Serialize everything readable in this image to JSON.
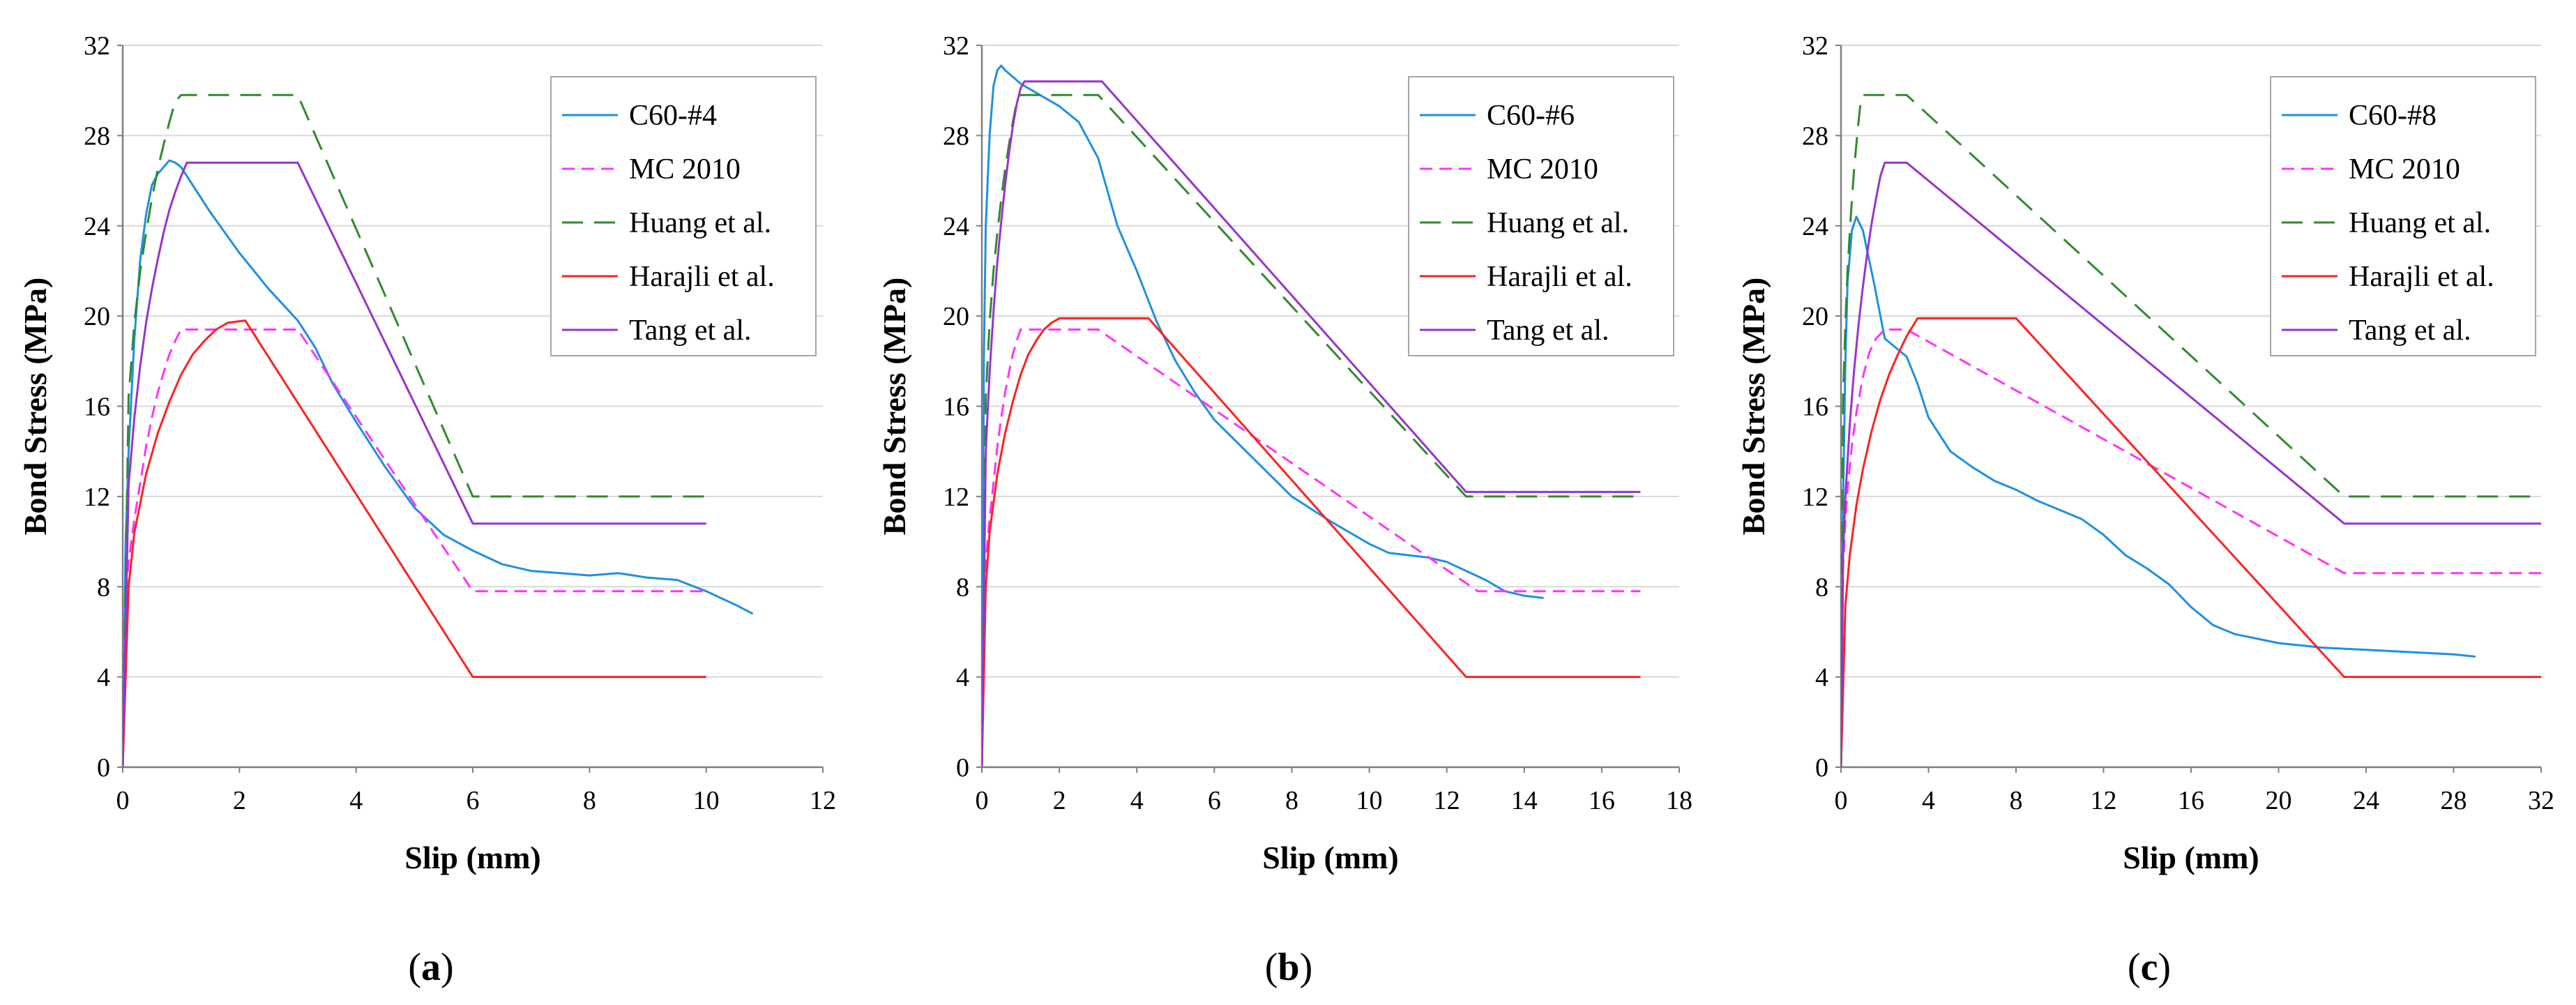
{
  "colors": {
    "test": "#1f90e0",
    "mc2010": "#ff33ff",
    "huang": "#2e8b2e",
    "harajli": "#ff2020",
    "tang": "#9933cc",
    "grid": "#d9d9d9",
    "axis": "#7f7f7f"
  },
  "chart_data": [
    {
      "type": "line",
      "panel_label": "(a)",
      "panel_label_parts": {
        "open": "(",
        "letter": "a",
        "close": ")"
      },
      "xlabel": "Slip (mm)",
      "ylabel": "Bond Stress (MPa)",
      "xlim": [
        0,
        12
      ],
      "ylim": [
        0,
        32
      ],
      "xticks": [
        0,
        2,
        4,
        6,
        8,
        10,
        12
      ],
      "yticks": [
        0,
        4,
        8,
        12,
        16,
        20,
        24,
        28,
        32
      ],
      "grid": "horizontal",
      "legend_position": "top-right",
      "legend": [
        "C60-#4",
        "MC 2010",
        "Huang et al.",
        "Harajli et al.",
        "Tang et al."
      ],
      "series": [
        {
          "name": "C60-#4",
          "style": "test",
          "x": [
            0,
            0.05,
            0.1,
            0.2,
            0.3,
            0.4,
            0.5,
            0.6,
            0.7,
            0.8,
            0.9,
            1.0,
            1.2,
            1.5,
            2.0,
            2.5,
            3.0,
            3.3,
            3.6,
            4.0,
            4.5,
            5.0,
            5.5,
            6.0,
            6.5,
            7.0,
            7.5,
            8.0,
            8.5,
            9.0,
            9.5,
            10.0,
            10.5,
            10.8
          ],
          "y": [
            0,
            10,
            14,
            19,
            22.5,
            24.5,
            25.8,
            26.3,
            26.6,
            26.9,
            26.8,
            26.6,
            25.8,
            24.6,
            22.8,
            21.2,
            19.8,
            18.6,
            17.0,
            15.3,
            13.3,
            11.5,
            10.3,
            9.6,
            9.0,
            8.7,
            8.6,
            8.5,
            8.6,
            8.4,
            8.3,
            7.8,
            7.2,
            6.8
          ]
        },
        {
          "name": "MC 2010",
          "style": "mc2010",
          "x": [
            0,
            0.05,
            0.1,
            0.2,
            0.3,
            0.4,
            0.5,
            0.6,
            0.7,
            0.8,
            0.9,
            1.0,
            3.0,
            6.0,
            10.0
          ],
          "y": [
            0,
            7.6,
            9.1,
            11.0,
            12.6,
            14.2,
            15.5,
            16.6,
            17.5,
            18.3,
            18.9,
            19.4,
            19.4,
            7.8,
            7.8
          ]
        },
        {
          "name": "Huang et al.",
          "style": "huang",
          "x": [
            0,
            0.1,
            0.2,
            0.3,
            0.4,
            0.5,
            0.6,
            0.7,
            0.8,
            0.9,
            1.0,
            3.0,
            6.0,
            10.0
          ],
          "y": [
            0,
            16.4,
            19.7,
            22.0,
            23.7,
            25.2,
            26.5,
            27.6,
            28.6,
            29.5,
            29.8,
            29.8,
            12.0,
            12.0
          ]
        },
        {
          "name": "Harajli et al.",
          "style": "harajli",
          "x": [
            0,
            0.1,
            0.2,
            0.4,
            0.6,
            0.8,
            1.0,
            1.2,
            1.4,
            1.6,
            1.8,
            2.1,
            6.0,
            10.0
          ],
          "y": [
            0,
            8.0,
            10.4,
            13.0,
            14.8,
            16.2,
            17.4,
            18.3,
            18.9,
            19.4,
            19.7,
            19.8,
            4.0,
            4.0
          ]
        },
        {
          "name": "Tang et al.",
          "style": "tang",
          "x": [
            0,
            0.1,
            0.2,
            0.3,
            0.4,
            0.5,
            0.6,
            0.7,
            0.8,
            0.9,
            1.0,
            1.1,
            3.0,
            6.0,
            10.0
          ],
          "y": [
            0,
            12.5,
            15.5,
            17.8,
            19.7,
            21.2,
            22.5,
            23.7,
            24.7,
            25.5,
            26.2,
            26.8,
            26.8,
            10.8,
            10.8
          ]
        }
      ]
    },
    {
      "type": "line",
      "panel_label": "(b)",
      "panel_label_parts": {
        "open": "(",
        "letter": "b",
        "close": ")"
      },
      "xlabel": "Slip (mm)",
      "ylabel": "Bond Stress (MPa)",
      "xlim": [
        0,
        18
      ],
      "ylim": [
        0,
        32
      ],
      "xticks": [
        0,
        2,
        4,
        6,
        8,
        10,
        12,
        14,
        16,
        18
      ],
      "yticks": [
        0,
        4,
        8,
        12,
        16,
        20,
        24,
        28,
        32
      ],
      "grid": "horizontal",
      "legend_position": "top-right",
      "legend": [
        "C60-#6",
        "MC 2010",
        "Huang et al.",
        "Harajli et al.",
        "Tang et al."
      ],
      "series": [
        {
          "name": "C60-#6",
          "style": "test",
          "x": [
            0,
            0.05,
            0.1,
            0.2,
            0.3,
            0.4,
            0.5,
            0.6,
            0.8,
            1.0,
            1.5,
            2.0,
            2.5,
            3.0,
            3.5,
            4.0,
            4.5,
            5.0,
            5.5,
            6.0,
            7.0,
            8.0,
            9.0,
            10.0,
            10.5,
            11.0,
            11.5,
            12.0,
            12.5,
            13.0,
            13.5,
            14.0,
            14.5
          ],
          "y": [
            0,
            18,
            24,
            28,
            30.2,
            30.9,
            31.1,
            30.9,
            30.6,
            30.3,
            29.8,
            29.3,
            28.6,
            27.0,
            24.0,
            22.0,
            19.8,
            18.0,
            16.6,
            15.4,
            13.7,
            12.0,
            10.9,
            9.9,
            9.5,
            9.4,
            9.3,
            9.1,
            8.7,
            8.3,
            7.8,
            7.6,
            7.5
          ]
        },
        {
          "name": "MC 2010",
          "style": "mc2010",
          "x": [
            0,
            0.05,
            0.1,
            0.2,
            0.3,
            0.4,
            0.5,
            0.6,
            0.7,
            0.8,
            0.9,
            1.0,
            3.0,
            12.8,
            17.0
          ],
          "y": [
            0,
            7.6,
            9.1,
            11.0,
            12.6,
            14.2,
            15.5,
            16.6,
            17.5,
            18.3,
            18.9,
            19.4,
            19.4,
            7.8,
            7.8
          ]
        },
        {
          "name": "Huang et al.",
          "style": "huang",
          "x": [
            0,
            0.1,
            0.2,
            0.3,
            0.4,
            0.5,
            0.6,
            0.7,
            0.8,
            0.9,
            1.0,
            3.0,
            12.5,
            17.0
          ],
          "y": [
            0,
            16.4,
            19.7,
            22.0,
            23.7,
            25.2,
            26.5,
            27.6,
            28.6,
            29.5,
            29.8,
            29.8,
            12.0,
            12.0
          ]
        },
        {
          "name": "Harajli et al.",
          "style": "harajli",
          "x": [
            0,
            0.1,
            0.2,
            0.4,
            0.6,
            0.8,
            1.0,
            1.2,
            1.4,
            1.6,
            1.8,
            2.0,
            4.3,
            12.5,
            17.0
          ],
          "y": [
            0,
            8.0,
            10.4,
            13.0,
            14.8,
            16.2,
            17.4,
            18.3,
            18.9,
            19.4,
            19.7,
            19.9,
            19.9,
            4.0,
            4.0
          ]
        },
        {
          "name": "Tang et al.",
          "style": "tang",
          "x": [
            0,
            0.1,
            0.2,
            0.3,
            0.4,
            0.5,
            0.6,
            0.7,
            0.8,
            0.9,
            1.0,
            1.1,
            3.1,
            12.5,
            17.0
          ],
          "y": [
            0,
            14.0,
            17.5,
            20.2,
            22.4,
            24.2,
            25.8,
            27.2,
            28.4,
            29.4,
            30.1,
            30.4,
            30.4,
            12.2,
            12.2
          ]
        }
      ]
    },
    {
      "type": "line",
      "panel_label": "(c)",
      "panel_label_parts": {
        "open": "(",
        "letter": "c",
        "close": ")"
      },
      "xlabel": "Slip (mm)",
      "ylabel": "Bond Stress (MPa)",
      "xlim": [
        0,
        32
      ],
      "ylim": [
        0,
        32
      ],
      "xticks": [
        0,
        4,
        8,
        12,
        16,
        20,
        24,
        28,
        32
      ],
      "yticks": [
        0,
        4,
        8,
        12,
        16,
        20,
        24,
        28,
        32
      ],
      "grid": "horizontal",
      "legend_position": "top-right",
      "legend": [
        "C60-#8",
        "MC 2010",
        "Huang et al.",
        "Harajli et al.",
        "Tang et al."
      ],
      "series": [
        {
          "name": "C60-#8",
          "style": "test",
          "x": [
            0,
            0.1,
            0.2,
            0.3,
            0.5,
            0.7,
            1.0,
            1.5,
            2.0,
            2.5,
            3.0,
            3.5,
            4.0,
            5.0,
            6.0,
            7.0,
            8.0,
            9.0,
            10.0,
            11.0,
            12.0,
            13.0,
            14.0,
            15.0,
            16.0,
            17.0,
            18.0,
            20.0,
            22.0,
            24.0,
            26.0,
            28.0,
            29.0
          ],
          "y": [
            0,
            12,
            18,
            21.5,
            23.8,
            24.4,
            23.8,
            21.5,
            19.0,
            18.6,
            18.2,
            17.0,
            15.5,
            14.0,
            13.3,
            12.7,
            12.3,
            11.8,
            11.4,
            11.0,
            10.3,
            9.4,
            8.8,
            8.1,
            7.1,
            6.3,
            5.9,
            5.5,
            5.3,
            5.2,
            5.1,
            5.0,
            4.9
          ]
        },
        {
          "name": "MC 2010",
          "style": "mc2010",
          "x": [
            0,
            0.1,
            0.2,
            0.3,
            0.5,
            0.7,
            1.0,
            1.3,
            1.6,
            2.0,
            3.0,
            23.0,
            32.0
          ],
          "y": [
            0,
            9.0,
            10.9,
            12.3,
            14.3,
            15.7,
            17.3,
            18.4,
            19.0,
            19.4,
            19.4,
            8.6,
            8.6
          ]
        },
        {
          "name": "Huang et al.",
          "style": "huang",
          "x": [
            0,
            0.1,
            0.2,
            0.3,
            0.4,
            0.5,
            0.6,
            0.7,
            0.8,
            0.9,
            1.0,
            3.0,
            23.0,
            32.0
          ],
          "y": [
            0,
            16.4,
            19.7,
            22.0,
            23.7,
            25.2,
            26.5,
            27.6,
            28.6,
            29.5,
            29.8,
            29.8,
            12.0,
            12.0
          ]
        },
        {
          "name": "Harajli et al.",
          "style": "harajli",
          "x": [
            0,
            0.2,
            0.4,
            0.7,
            1.0,
            1.4,
            1.8,
            2.2,
            2.6,
            3.0,
            3.5,
            8.0,
            23.0,
            32.0
          ],
          "y": [
            0,
            7.2,
            9.4,
            11.6,
            13.2,
            14.9,
            16.3,
            17.4,
            18.3,
            19.1,
            19.9,
            19.9,
            4.0,
            4.0
          ]
        },
        {
          "name": "Tang et al.",
          "style": "tang",
          "x": [
            0,
            0.1,
            0.2,
            0.4,
            0.6,
            0.8,
            1.0,
            1.2,
            1.4,
            1.6,
            1.8,
            2.0,
            3.0,
            23.0,
            32.0
          ],
          "y": [
            0,
            9.5,
            12.0,
            15.2,
            17.6,
            19.6,
            21.3,
            22.8,
            24.1,
            25.2,
            26.2,
            26.8,
            26.8,
            10.8,
            10.8
          ]
        }
      ]
    }
  ]
}
